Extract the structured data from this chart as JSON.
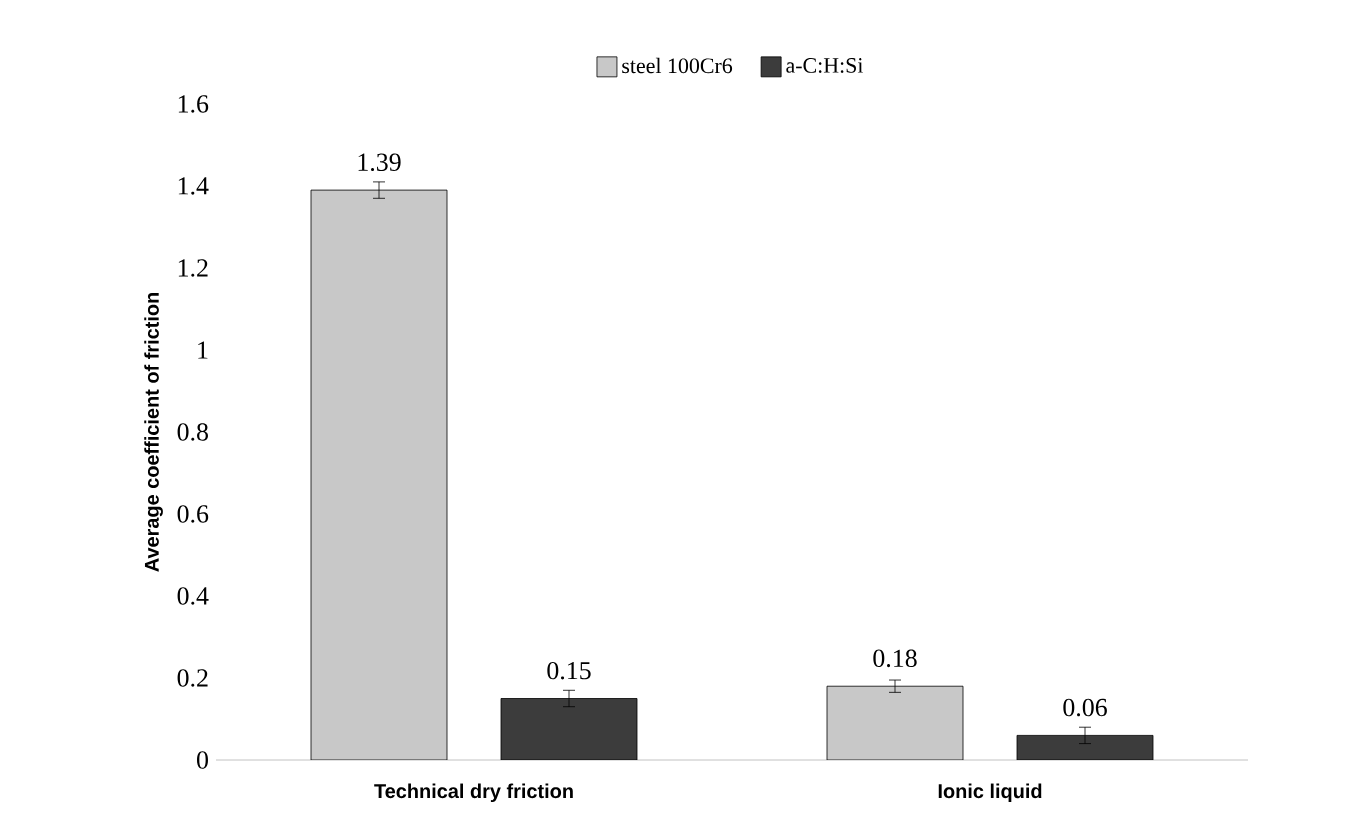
{
  "chart_data": {
    "type": "bar",
    "ylabel": "Average coefficient of friction",
    "categories": [
      "Technical dry friction",
      "Ionic liquid"
    ],
    "series": [
      {
        "name": "steel 100Cr6",
        "color": "#c8c8c8",
        "values": [
          1.39,
          0.18
        ],
        "errors": [
          0.02,
          0.015
        ]
      },
      {
        "name": "a-C:H:Si",
        "color": "#3c3c3c",
        "values": [
          0.15,
          0.06
        ],
        "errors": [
          0.02,
          0.02
        ]
      }
    ],
    "ylim": [
      0,
      1.6
    ],
    "yticks": [
      0,
      0.2,
      0.4,
      0.6,
      0.8,
      1,
      1.2,
      1.4,
      1.6
    ],
    "data_labels": true,
    "grid": false,
    "legend": "top"
  }
}
